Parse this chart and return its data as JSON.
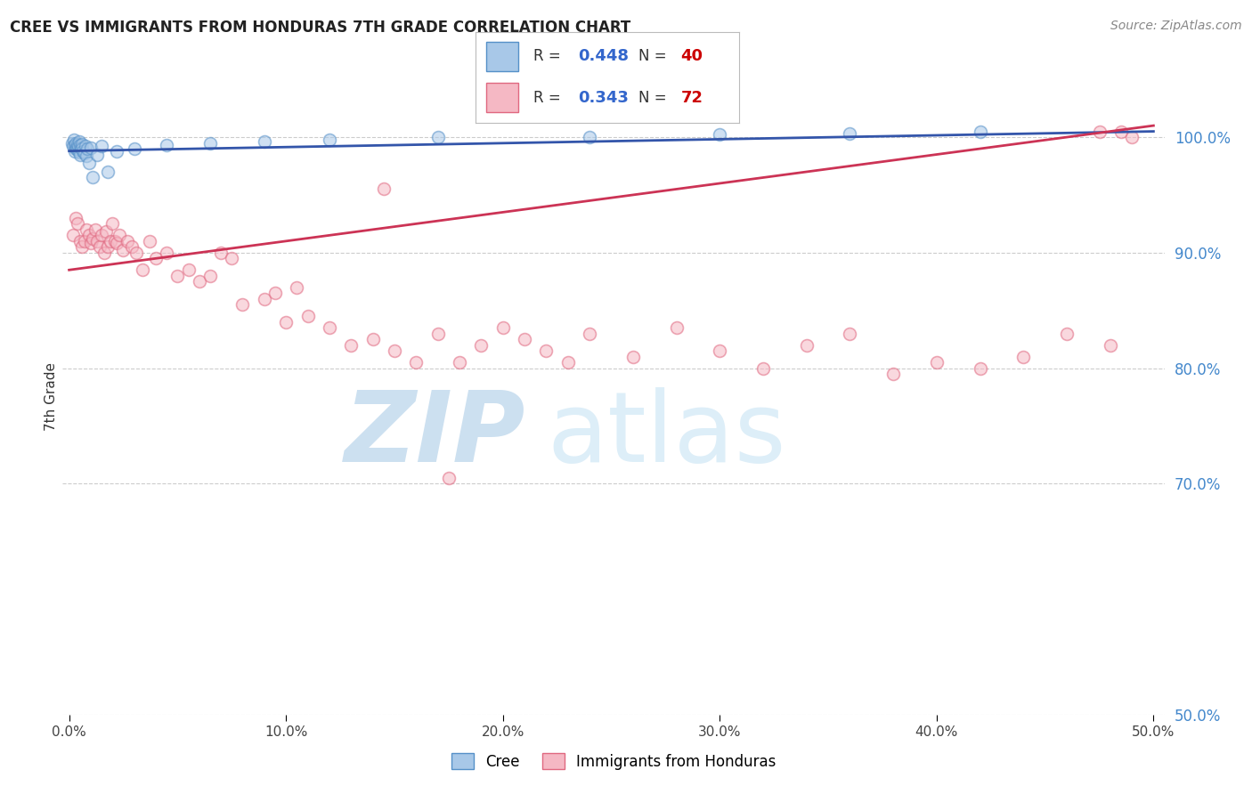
{
  "title": "CREE VS IMMIGRANTS FROM HONDURAS 7TH GRADE CORRELATION CHART",
  "source": "Source: ZipAtlas.com",
  "ylabel": "7th Grade",
  "xlim": [
    0.0,
    50.0
  ],
  "ylim": [
    50.0,
    105.0
  ],
  "yticks": [
    50.0,
    70.0,
    80.0,
    90.0,
    100.0
  ],
  "xticks": [
    0.0,
    10.0,
    20.0,
    30.0,
    40.0,
    50.0
  ],
  "cree_R": 0.448,
  "cree_N": 40,
  "honduras_R": 0.343,
  "honduras_N": 72,
  "cree_color": "#a8c8e8",
  "cree_edge_color": "#5590c8",
  "honduras_color": "#f5b8c4",
  "honduras_edge_color": "#e06880",
  "trend_cree_color": "#3355aa",
  "trend_honduras_color": "#cc3355",
  "background_color": "#ffffff",
  "grid_color": "#cccccc",
  "cree_x": [
    0.15,
    0.18,
    0.22,
    0.25,
    0.28,
    0.3,
    0.32,
    0.35,
    0.38,
    0.4,
    0.42,
    0.45,
    0.48,
    0.5,
    0.52,
    0.55,
    0.58,
    0.6,
    0.65,
    0.7,
    0.75,
    0.8,
    0.85,
    0.9,
    1.0,
    1.1,
    1.3,
    1.5,
    1.8,
    2.2,
    3.0,
    4.5,
    6.5,
    9.0,
    12.0,
    17.0,
    24.0,
    30.0,
    36.0,
    42.0
  ],
  "cree_y": [
    99.5,
    99.2,
    99.8,
    98.8,
    99.3,
    99.0,
    99.5,
    99.1,
    98.9,
    99.4,
    99.2,
    99.6,
    98.7,
    99.3,
    98.5,
    99.1,
    99.4,
    99.0,
    98.8,
    98.6,
    99.2,
    98.4,
    99.0,
    97.8,
    99.1,
    96.5,
    98.5,
    99.2,
    97.0,
    98.8,
    99.0,
    99.3,
    99.5,
    99.6,
    99.8,
    100.0,
    100.0,
    100.2,
    100.3,
    100.5
  ],
  "honduras_x": [
    0.2,
    0.3,
    0.4,
    0.5,
    0.6,
    0.7,
    0.8,
    0.9,
    1.0,
    1.1,
    1.2,
    1.3,
    1.4,
    1.5,
    1.6,
    1.7,
    1.8,
    1.9,
    2.0,
    2.1,
    2.2,
    2.3,
    2.5,
    2.7,
    2.9,
    3.1,
    3.4,
    3.7,
    4.0,
    4.5,
    5.0,
    5.5,
    6.0,
    6.5,
    7.0,
    7.5,
    8.0,
    9.0,
    9.5,
    10.0,
    10.5,
    11.0,
    12.0,
    13.0,
    14.0,
    15.0,
    16.0,
    17.0,
    18.0,
    19.0,
    20.0,
    21.0,
    22.0,
    23.0,
    24.0,
    26.0,
    28.0,
    30.0,
    32.0,
    34.0,
    36.0,
    38.0,
    40.0,
    42.0,
    44.0,
    46.0,
    48.0,
    14.5,
    17.5,
    47.5,
    48.5,
    49.0
  ],
  "honduras_y": [
    91.5,
    93.0,
    92.5,
    91.0,
    90.5,
    91.0,
    92.0,
    91.5,
    90.8,
    91.2,
    92.0,
    91.0,
    90.5,
    91.5,
    90.0,
    91.8,
    90.5,
    91.0,
    92.5,
    91.0,
    90.8,
    91.5,
    90.2,
    91.0,
    90.5,
    90.0,
    88.5,
    91.0,
    89.5,
    90.0,
    88.0,
    88.5,
    87.5,
    88.0,
    90.0,
    89.5,
    85.5,
    86.0,
    86.5,
    84.0,
    87.0,
    84.5,
    83.5,
    82.0,
    82.5,
    81.5,
    80.5,
    83.0,
    80.5,
    82.0,
    83.5,
    82.5,
    81.5,
    80.5,
    83.0,
    81.0,
    83.5,
    81.5,
    80.0,
    82.0,
    83.0,
    79.5,
    80.5,
    80.0,
    81.0,
    83.0,
    82.0,
    95.5,
    70.5,
    100.5,
    100.5,
    100.0
  ],
  "marker_size": 100,
  "marker_alpha": 0.55,
  "marker_linewidth": 1.2
}
